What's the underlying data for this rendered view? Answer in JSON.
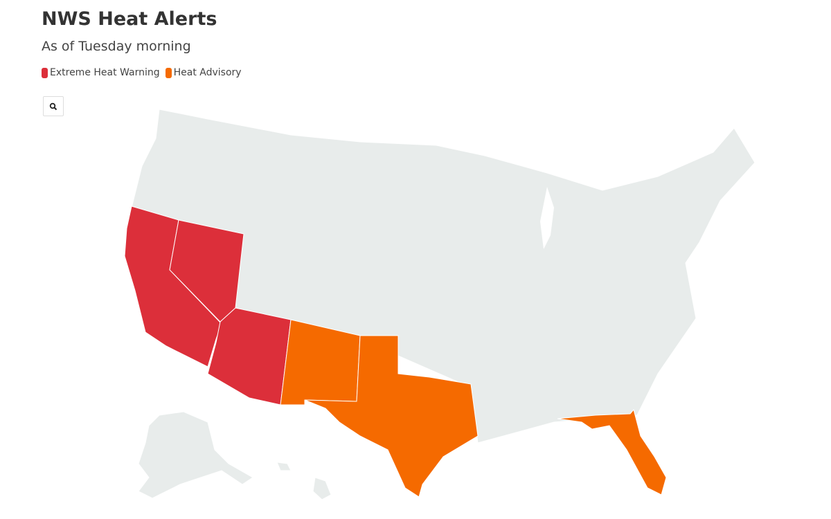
{
  "header": {
    "title": "NWS Heat Alerts",
    "subtitle": "As of Tuesday morning"
  },
  "legend": [
    {
      "label": "Extreme Heat Warning",
      "color": "#dc2f3a"
    },
    {
      "label": "Heat Advisory",
      "color": "#f56a00"
    }
  ],
  "controls": {
    "zoom_icon": "search-icon"
  },
  "map": {
    "base_color": "#e8eceb",
    "states": [
      {
        "name": "California",
        "alert": "Extreme Heat Warning"
      },
      {
        "name": "Nevada",
        "alert": "Extreme Heat Warning"
      },
      {
        "name": "Arizona",
        "alert": "Extreme Heat Warning"
      },
      {
        "name": "New Mexico",
        "alert": "Heat Advisory"
      },
      {
        "name": "Texas",
        "alert": "Heat Advisory"
      },
      {
        "name": "Florida",
        "alert": "Heat Advisory"
      }
    ]
  }
}
